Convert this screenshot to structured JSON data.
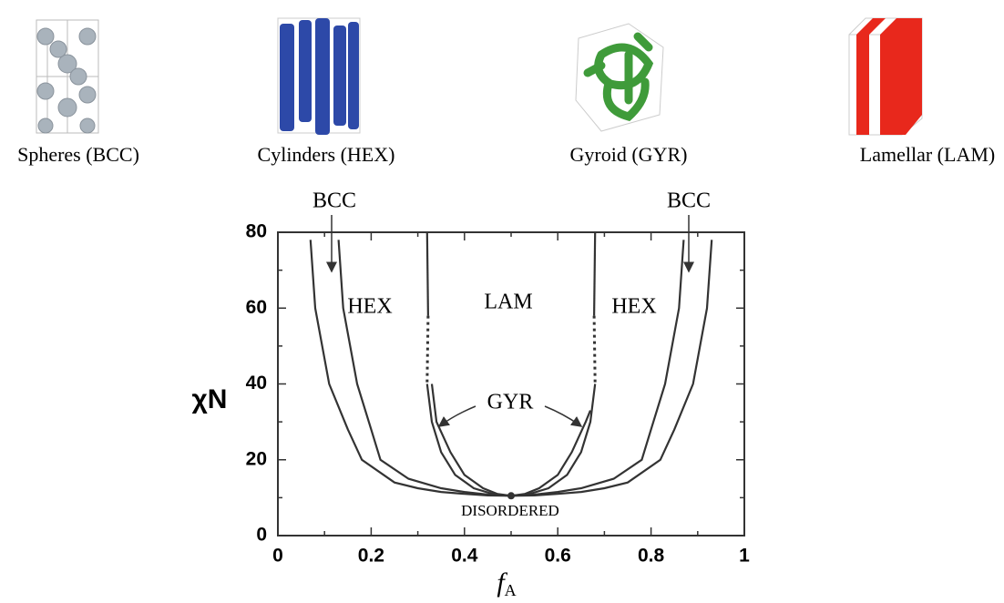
{
  "structures": [
    "Spheres (BCC)",
    "Cylinders (HEX)",
    "Gyroid (GYR)",
    "Lamellar (LAM)"
  ],
  "chart_data": {
    "type": "line",
    "ylabel": "χN",
    "xlabel": [
      "f",
      "A"
    ],
    "xlim": [
      0,
      1
    ],
    "ylim": [
      0,
      80
    ],
    "xticks": [
      0,
      0.2,
      0.4,
      0.6,
      0.8,
      1
    ],
    "yticks": [
      0,
      20,
      40,
      60,
      80
    ],
    "xminorticks": [
      0.1,
      0.3,
      0.5,
      0.7,
      0.9
    ],
    "yminorticks": [
      10,
      30,
      50,
      70
    ],
    "color": "#333333",
    "series": [
      {
        "x": [
          0.07,
          0.08,
          0.11,
          0.15,
          0.18,
          0.25,
          0.3,
          0.35,
          0.4,
          0.45,
          0.5,
          0.55,
          0.6,
          0.65,
          0.7,
          0.75,
          0.82,
          0.85,
          0.89,
          0.92,
          0.93
        ],
        "y": [
          78,
          60,
          40,
          28,
          20,
          14,
          12.5,
          11.5,
          11,
          10.6,
          10.5,
          10.6,
          11,
          11.5,
          12.5,
          14,
          20,
          28,
          40,
          60,
          78
        ],
        "dash": false
      },
      {
        "x": [
          0.13,
          0.14,
          0.17,
          0.2,
          0.22,
          0.28,
          0.35,
          0.4,
          0.45,
          0.5,
          0.55,
          0.6,
          0.65,
          0.72,
          0.78,
          0.8,
          0.83,
          0.86,
          0.87
        ],
        "y": [
          78,
          60,
          40,
          28,
          20,
          15,
          12.5,
          11.5,
          10.8,
          10.5,
          10.8,
          11.5,
          12.5,
          15,
          20,
          28,
          40,
          60,
          78
        ],
        "dash": false
      },
      {
        "x": [
          0.32,
          0.33,
          0.35,
          0.38,
          0.42,
          0.46,
          0.5,
          0.54,
          0.58,
          0.62,
          0.65,
          0.67,
          0.68
        ],
        "y": [
          40,
          30,
          22,
          16,
          12.5,
          11,
          10.5,
          11,
          12.5,
          16,
          22,
          30,
          40
        ],
        "dash": false
      },
      {
        "x": [
          0.33,
          0.34,
          0.37,
          0.4,
          0.44,
          0.47,
          0.5,
          0.53,
          0.56,
          0.6,
          0.63,
          0.66,
          0.67
        ],
        "y": [
          40,
          30,
          22,
          16,
          12.5,
          11,
          10.5,
          11,
          12.5,
          16,
          22,
          30,
          33
        ]
      },
      {
        "x": [
          0.32,
          0.322
        ],
        "y": [
          80,
          58
        ],
        "dash": false
      },
      {
        "x": [
          0.322,
          0.32
        ],
        "y": [
          58,
          40
        ],
        "dash": true
      },
      {
        "x": [
          0.68,
          0.678
        ],
        "y": [
          80,
          58
        ],
        "dash": false
      },
      {
        "x": [
          0.678,
          0.68
        ],
        "y": [
          58,
          40
        ],
        "dash": true
      }
    ],
    "critical_point": [
      0.5,
      10.5
    ],
    "annotations": [
      "BCC",
      "BCC",
      "HEX",
      "LAM",
      "HEX",
      "GYR",
      "DISORDERED"
    ]
  }
}
